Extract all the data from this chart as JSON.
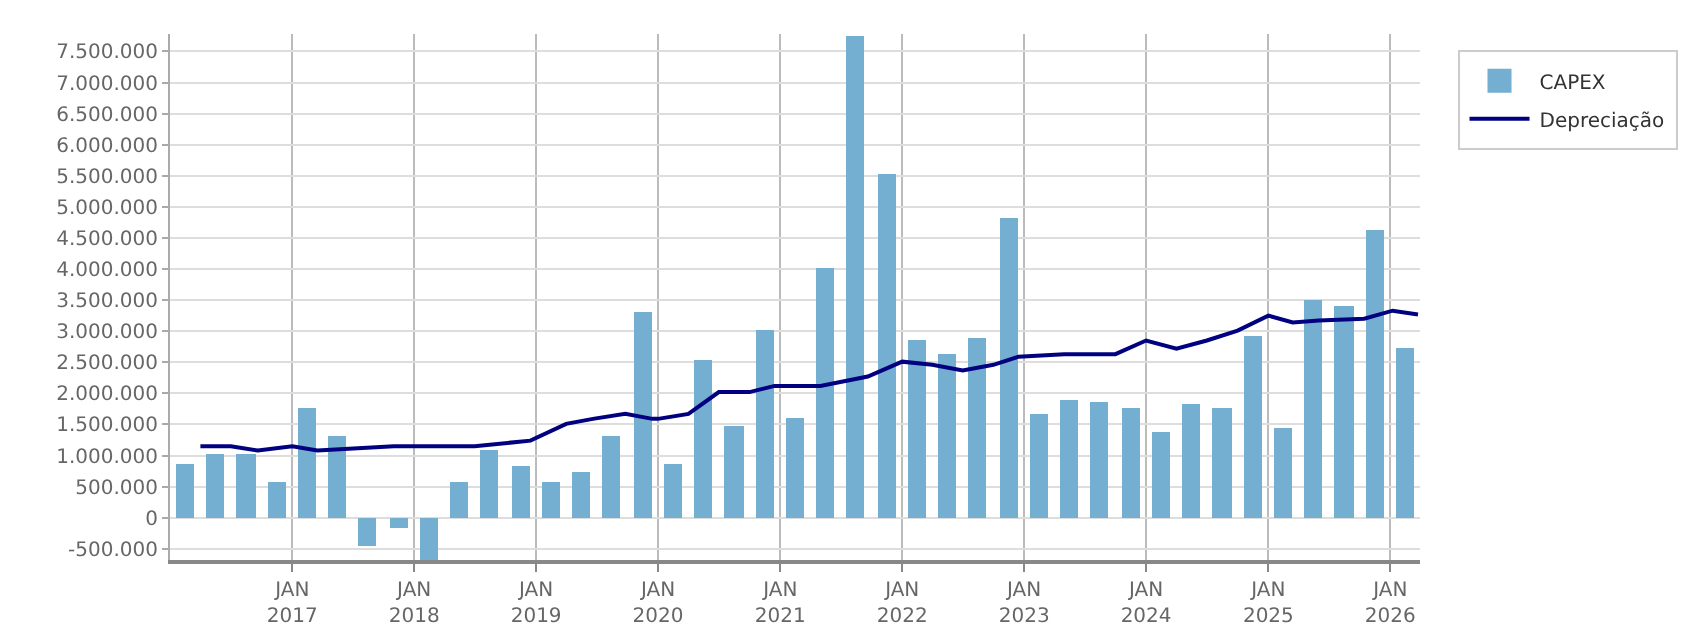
{
  "chart_data": {
    "type": "bar",
    "legend": "top right",
    "grid": true,
    "xlim": [
      "2016-01-01",
      "2026-03-31"
    ],
    "xticks": [
      {
        "value": "2017-01-01",
        "label": "JAN\n2017"
      },
      {
        "value": "2018-01-01",
        "label": "JAN\n2018"
      },
      {
        "value": "2019-01-01",
        "label": "JAN\n2019"
      },
      {
        "value": "2020-01-01",
        "label": "JAN\n2020"
      },
      {
        "value": "2021-01-01",
        "label": "JAN\n2021"
      },
      {
        "value": "2022-01-01",
        "label": "JAN\n2022"
      },
      {
        "value": "2023-01-01",
        "label": "JAN\n2023"
      },
      {
        "value": "2024-01-01",
        "label": "JAN\n2024"
      },
      {
        "value": "2025-01-01",
        "label": "JAN\n2025"
      },
      {
        "value": "2026-01-01",
        "label": "JAN\n2026"
      }
    ],
    "ylim": [
      -680000,
      7780000
    ],
    "yticks": [
      {
        "value": -500000,
        "label": "-500.000"
      },
      {
        "value": 0,
        "label": "0"
      },
      {
        "value": 500000,
        "label": "500.000"
      },
      {
        "value": 1000000,
        "label": "1.000.000"
      },
      {
        "value": 1500000,
        "label": "1.500.000"
      },
      {
        "value": 2000000,
        "label": "2.000.000"
      },
      {
        "value": 2500000,
        "label": "2.500.000"
      },
      {
        "value": 3000000,
        "label": "3.000.000"
      },
      {
        "value": 3500000,
        "label": "3.500.000"
      },
      {
        "value": 4000000,
        "label": "4.000.000"
      },
      {
        "value": 4500000,
        "label": "4.500.000"
      },
      {
        "value": 5000000,
        "label": "5.000.000"
      },
      {
        "value": 5500000,
        "label": "5.500.000"
      },
      {
        "value": 6000000,
        "label": "6.000.000"
      },
      {
        "value": 6500000,
        "label": "6.500.000"
      },
      {
        "value": 7000000,
        "label": "7.000.000"
      },
      {
        "value": 7500000,
        "label": "7.500.000"
      }
    ],
    "series": [
      {
        "name": "CAPEX",
        "color": "#74aed0",
        "x": [
          "2016-02-15",
          "2016-05-15",
          "2016-08-15",
          "2016-11-15",
          "2017-02-15",
          "2017-05-15",
          "2017-08-15",
          "2017-11-15",
          "2018-02-15",
          "2018-05-15",
          "2018-08-15",
          "2018-11-15",
          "2019-02-15",
          "2019-05-15",
          "2019-08-15",
          "2019-11-15",
          "2020-02-15",
          "2020-05-15",
          "2020-08-15",
          "2020-11-15",
          "2021-02-15",
          "2021-05-15",
          "2021-08-15",
          "2021-11-15",
          "2022-02-15",
          "2022-05-15",
          "2022-08-15",
          "2022-11-15",
          "2023-02-15",
          "2023-05-15",
          "2023-08-15",
          "2023-11-15",
          "2024-02-15",
          "2024-05-15",
          "2024-08-15",
          "2024-11-15",
          "2025-02-15",
          "2025-05-15",
          "2025-08-15",
          "2025-11-15",
          "2026-02-15"
        ],
        "values": [
          880000,
          1040000,
          1040000,
          590000,
          1750000,
          1330000,
          -440000,
          -180000,
          -680000,
          560000,
          1080000,
          820000,
          590000,
          720000,
          1300000,
          3300000,
          880000,
          2530000,
          1490000,
          3010000,
          1620000,
          4010000,
          7760000,
          5530000,
          2850000,
          2620000,
          2880000,
          4820000,
          1660000,
          1880000,
          1850000,
          1750000,
          1370000,
          1820000,
          1750000,
          2910000,
          1430000,
          3490000,
          3400000,
          4620000,
          2720000
        ]
      },
      {
        "name": "Depreciação",
        "type": "line",
        "color": "#000080",
        "line_style": "solid",
        "marker": "none",
        "x": [
          "2016-04-01",
          "2016-07-01",
          "2016-09-20",
          "2017-01-01",
          "2017-03-17",
          "2017-11-01",
          "2018-07-01",
          "2018-12-15",
          "2019-04-01",
          "2019-06-20",
          "2019-09-25",
          "2019-12-15",
          "2020-01-01",
          "2020-04-01",
          "2020-07-01",
          "2020-10-01",
          "2020-12-15",
          "2021-05-01",
          "2021-09-20",
          "2022-01-01",
          "2022-04-01",
          "2022-07-01",
          "2022-10-01",
          "2022-12-15",
          "2023-05-01",
          "2023-10-01",
          "2024-01-01",
          "2024-04-01",
          "2024-07-01",
          "2024-10-01",
          "2025-01-01",
          "2025-03-15",
          "2025-06-01",
          "2025-10-15",
          "2026-01-08",
          "2026-03-25"
        ],
        "values": [
          1150000,
          1150000,
          1080000,
          1150000,
          1080000,
          1150000,
          1150000,
          1240000,
          1510000,
          1590000,
          1670000,
          1590000,
          1590000,
          1670000,
          2020000,
          2020000,
          2120000,
          2120000,
          2270000,
          2510000,
          2460000,
          2370000,
          2460000,
          2590000,
          2630000,
          2630000,
          2850000,
          2720000,
          2850000,
          3010000,
          3250000,
          3140000,
          3170000,
          3200000,
          3330000,
          3270000
        ]
      }
    ]
  }
}
